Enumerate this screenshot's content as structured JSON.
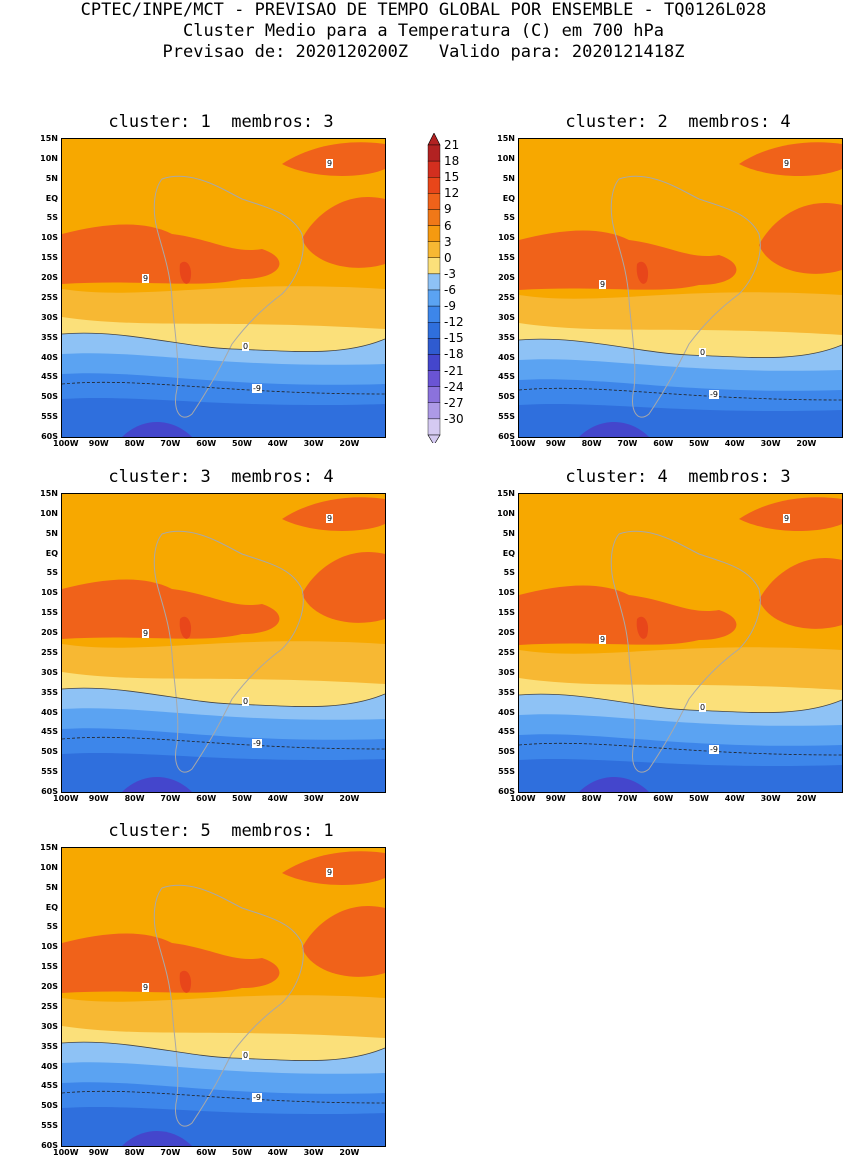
{
  "header": {
    "line1": "CPTEC/INPE/MCT - PREVISAO DE TEMPO GLOBAL POR ENSEMBLE - TQ0126L028",
    "line2": "Cluster Medio para a Temperatura (C) em 700 hPa",
    "line3": "Previsao de: 2020120200Z   Valido para: 2020121418Z"
  },
  "panels": [
    {
      "title": "cluster: 1  membros: 3"
    },
    {
      "title": "cluster: 2  membros: 4"
    },
    {
      "title": "cluster: 3  membros: 4"
    },
    {
      "title": "cluster: 4  membros: 3"
    },
    {
      "title": "cluster: 5  membros: 1"
    }
  ],
  "lat_labels": [
    "15N",
    "10N",
    "5N",
    "EQ",
    "5S",
    "10S",
    "15S",
    "20S",
    "25S",
    "30S",
    "35S",
    "40S",
    "45S",
    "50S",
    "55S",
    "60S"
  ],
  "lon_labels": [
    "100W",
    "90W",
    "80W",
    "70W",
    "60W",
    "50W",
    "40W",
    "30W",
    "20W"
  ],
  "contour_labels": {
    "warm": "9",
    "zero": "0",
    "cold": "-9"
  },
  "colorbar": {
    "levels": [
      "21",
      "18",
      "15",
      "12",
      "9",
      "6",
      "3",
      "0",
      "-3",
      "-6",
      "-9",
      "-12",
      "-15",
      "-18",
      "-21",
      "-24",
      "-27",
      "-30"
    ],
    "colors": [
      "#b22222",
      "#d32f1f",
      "#e8461a",
      "#f0621a",
      "#f07818",
      "#f59a10",
      "#f7b833",
      "#fbe07a",
      "#8ec2f5",
      "#5ba3f2",
      "#3d86ea",
      "#2f6fdd",
      "#2f5bd0",
      "#4446cc",
      "#6a54d4",
      "#8b72dc",
      "#ad9ae6",
      "#d5caf2"
    ]
  },
  "colors": {
    "land_outline": "#a8a8a8",
    "warm1": "#f59a10",
    "warm2": "#f0621a",
    "warm3": "#e8461a",
    "mild": "#f7b833",
    "cool": "#fbe07a",
    "cold1": "#8ec2f5",
    "cold2": "#5ba3f2",
    "cold3": "#3d86ea",
    "cold4": "#2f6fdd",
    "cold5": "#4446cc"
  }
}
